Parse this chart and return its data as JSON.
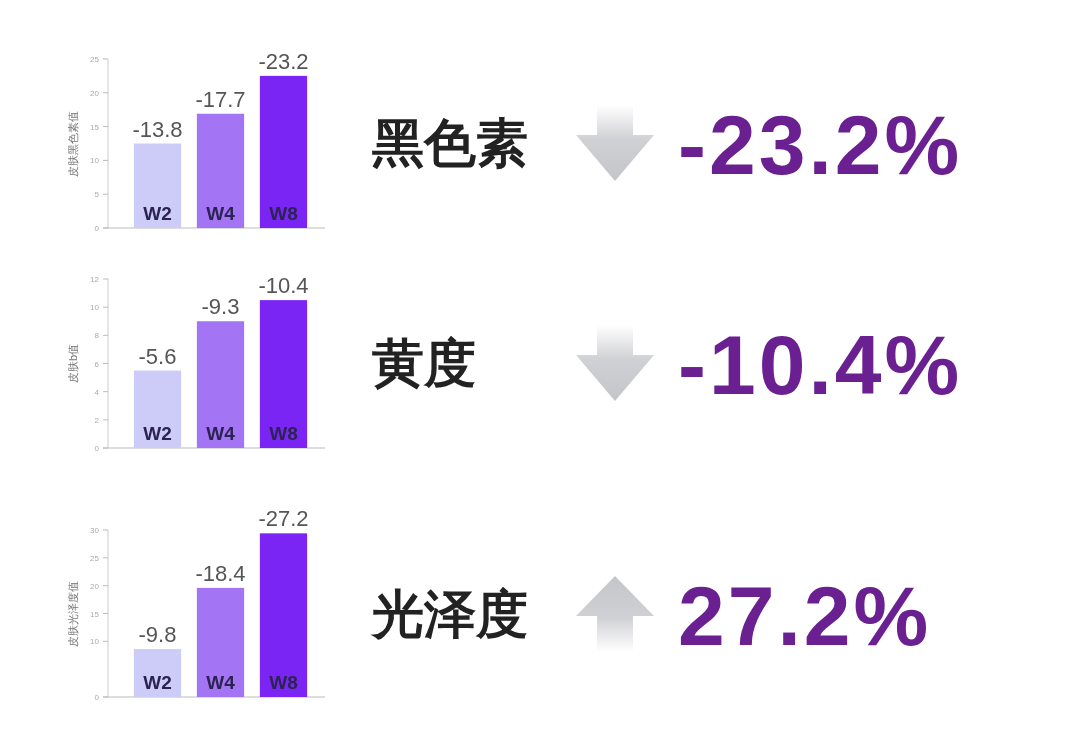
{
  "chart_data": [
    {
      "type": "bar",
      "ylabel": "皮肤黑色素值",
      "categories": [
        "W2",
        "W4",
        "W8"
      ],
      "values": [
        12.5,
        16.9,
        22.5
      ],
      "colors": [
        "#cdcbf8",
        "#a374f3",
        "#7b25f4"
      ],
      "ylim": [
        0,
        25
      ],
      "yticks": [
        0,
        5,
        10,
        15,
        20,
        25
      ],
      "annotations": [
        "黑色素",
        "-23.2%",
        {
          "text": "-13.8",
          "x": "W2",
          "y": 12.5
        },
        {
          "text": "-17.7",
          "x": "W4",
          "y": 16.9
        },
        {
          "text": "-23.2",
          "x": "W8",
          "y": 22.5
        }
      ]
    },
    {
      "type": "bar",
      "ylabel": "皮肤b值",
      "categories": [
        "W2",
        "W4",
        "W8"
      ],
      "values": [
        5.5,
        9.0,
        10.5
      ],
      "colors": [
        "#cdcbf8",
        "#a374f3",
        "#7b25f4"
      ],
      "ylim": [
        0,
        12
      ],
      "yticks": [
        0,
        2,
        4,
        6,
        8,
        10,
        12
      ],
      "annotations": [
        "黄度",
        "-10.4%",
        {
          "text": "-5.6",
          "x": "W2",
          "y": 5.5
        },
        {
          "text": "-9.3",
          "x": "W4",
          "y": 9.0
        },
        {
          "text": "-10.4",
          "x": "W8",
          "y": 10.5
        }
      ]
    },
    {
      "type": "bar",
      "ylabel": "皮肤光泽度值",
      "categories": [
        "W2",
        "W4",
        "W8"
      ],
      "values": [
        8.6,
        19.6,
        29.4
      ],
      "colors": [
        "#cdcbf8",
        "#a374f3",
        "#7b25f4"
      ],
      "ylim": [
        0,
        30
      ],
      "yticks": [
        0,
        10,
        15,
        20,
        25,
        30
      ],
      "annotations": [
        "光泽度",
        "27.2%",
        {
          "text": "-9.8",
          "x": "W2",
          "y": 8.6
        },
        {
          "text": "-18.4",
          "x": "W4",
          "y": 19.6
        },
        {
          "text": "-27.2",
          "x": "W8",
          "y": 29.4
        }
      ]
    }
  ]
}
